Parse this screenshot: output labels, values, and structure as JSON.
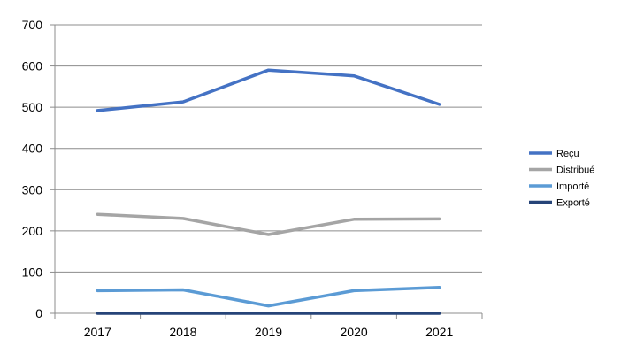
{
  "chart_data": {
    "type": "line",
    "title": "",
    "xlabel": "",
    "ylabel": "",
    "categories": [
      "2017",
      "2018",
      "2019",
      "2020",
      "2021"
    ],
    "ylim": [
      0,
      700
    ],
    "yticks": [
      0,
      100,
      200,
      300,
      400,
      500,
      600,
      700
    ],
    "grid": true,
    "legend_position": "right",
    "series": [
      {
        "name": "Reçu",
        "color": "#4472C4",
        "values": [
          492,
          513,
          590,
          576,
          507
        ]
      },
      {
        "name": "Distribué",
        "color": "#A5A5A5",
        "values": [
          240,
          230,
          191,
          228,
          229
        ]
      },
      {
        "name": "Importé",
        "color": "#5B9BD5",
        "values": [
          55,
          57,
          18,
          55,
          63
        ]
      },
      {
        "name": "Exporté",
        "color": "#264478",
        "values": [
          0,
          0,
          0,
          0,
          0
        ]
      }
    ]
  }
}
